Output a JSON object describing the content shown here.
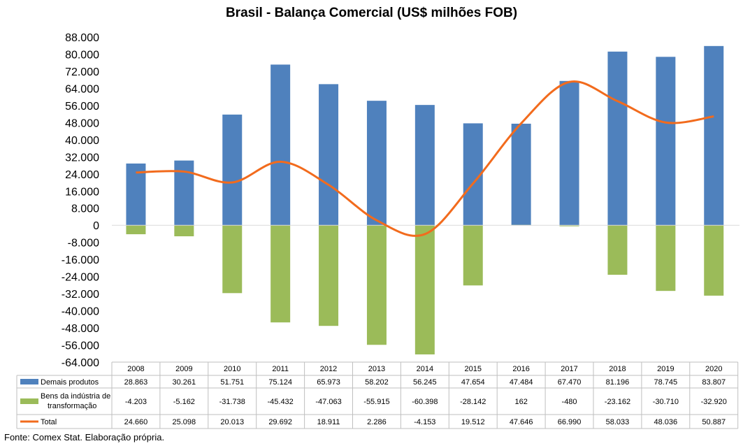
{
  "title": "Brasil - Balança Comercial (US$ milhões FOB)",
  "source": "Fonte: Comex Stat. Elaboração própria.",
  "colors": {
    "demais": "#4f81bd",
    "bens": "#9bbb59",
    "total": "#f26b1d"
  },
  "chart_data": {
    "type": "bar",
    "title": "Brasil - Balança Comercial (US$ milhões FOB)",
    "categories": [
      "2008",
      "2009",
      "2010",
      "2011",
      "2012",
      "2013",
      "2014",
      "2015",
      "2016",
      "2017",
      "2018",
      "2019",
      "2020"
    ],
    "ylim": [
      -64000,
      88000
    ],
    "yticks": [
      88000,
      80000,
      72000,
      64000,
      56000,
      48000,
      40000,
      32000,
      24000,
      16000,
      8000,
      0,
      -8000,
      -16000,
      -24000,
      -32000,
      -40000,
      -48000,
      -56000,
      -64000
    ],
    "ytick_labels": [
      "88.000",
      "80.000",
      "72.000",
      "64.000",
      "56.000",
      "48.000",
      "40.000",
      "32.000",
      "24.000",
      "16.000",
      "8.000",
      "0",
      "-8.000",
      "-16.000",
      "-24.000",
      "-32.000",
      "-40.000",
      "-48.000",
      "-56.000",
      "-64.000"
    ],
    "grid": false,
    "legend": "data-table",
    "series": [
      {
        "name": "Demais produtos",
        "type": "bar",
        "values": [
          28863,
          30261,
          51751,
          75124,
          65973,
          58202,
          56245,
          47654,
          47484,
          67470,
          81196,
          78745,
          83807
        ],
        "labels": [
          "28.863",
          "30.261",
          "51.751",
          "75.124",
          "65.973",
          "58.202",
          "56.245",
          "47.654",
          "47.484",
          "67.470",
          "81.196",
          "78.745",
          "83.807"
        ]
      },
      {
        "name": "Bens da indústria de transformação",
        "name_lines": [
          "Bens da indústria de",
          "transformação"
        ],
        "type": "bar",
        "values": [
          -4203,
          -5162,
          -31738,
          -45432,
          -47063,
          -55915,
          -60398,
          -28142,
          162,
          -480,
          -23162,
          -30710,
          -32920
        ],
        "labels": [
          "-4.203",
          "-5.162",
          "-31.738",
          "-45.432",
          "-47.063",
          "-55.915",
          "-60.398",
          "-28.142",
          "162",
          "-480",
          "-23.162",
          "-30.710",
          "-32.920"
        ]
      },
      {
        "name": "Total",
        "type": "line",
        "values": [
          24660,
          25098,
          20013,
          29692,
          18911,
          2286,
          -4153,
          19512,
          47646,
          66990,
          58033,
          48036,
          50887
        ],
        "labels": [
          "24.660",
          "25.098",
          "20.013",
          "29.692",
          "18.911",
          "2.286",
          "-4.153",
          "19.512",
          "47.646",
          "66.990",
          "58.033",
          "48.036",
          "50.887"
        ]
      }
    ]
  }
}
